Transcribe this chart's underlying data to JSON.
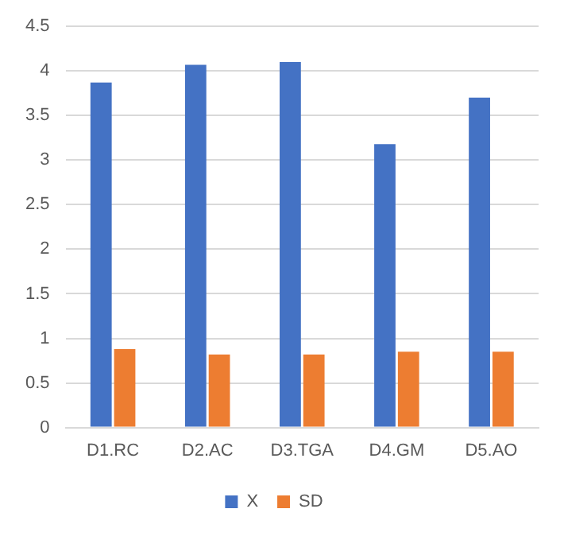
{
  "chart_data": {
    "type": "bar",
    "categories": [
      "D1.RC",
      "D2.AC",
      "D3.TGA",
      "D4.GM",
      "D5.AO"
    ],
    "series": [
      {
        "name": "X",
        "color": "#4472c4",
        "values": [
          3.87,
          4.07,
          4.1,
          3.18,
          3.7
        ]
      },
      {
        "name": "SD",
        "color": "#ed7d31",
        "values": [
          0.88,
          0.82,
          0.82,
          0.85,
          0.85
        ]
      }
    ],
    "ylim": [
      0,
      4.5
    ],
    "yticks": [
      0,
      0.5,
      1,
      1.5,
      2,
      2.5,
      3,
      3.5,
      4,
      4.5
    ],
    "grid": "y",
    "legend": "bottom"
  }
}
